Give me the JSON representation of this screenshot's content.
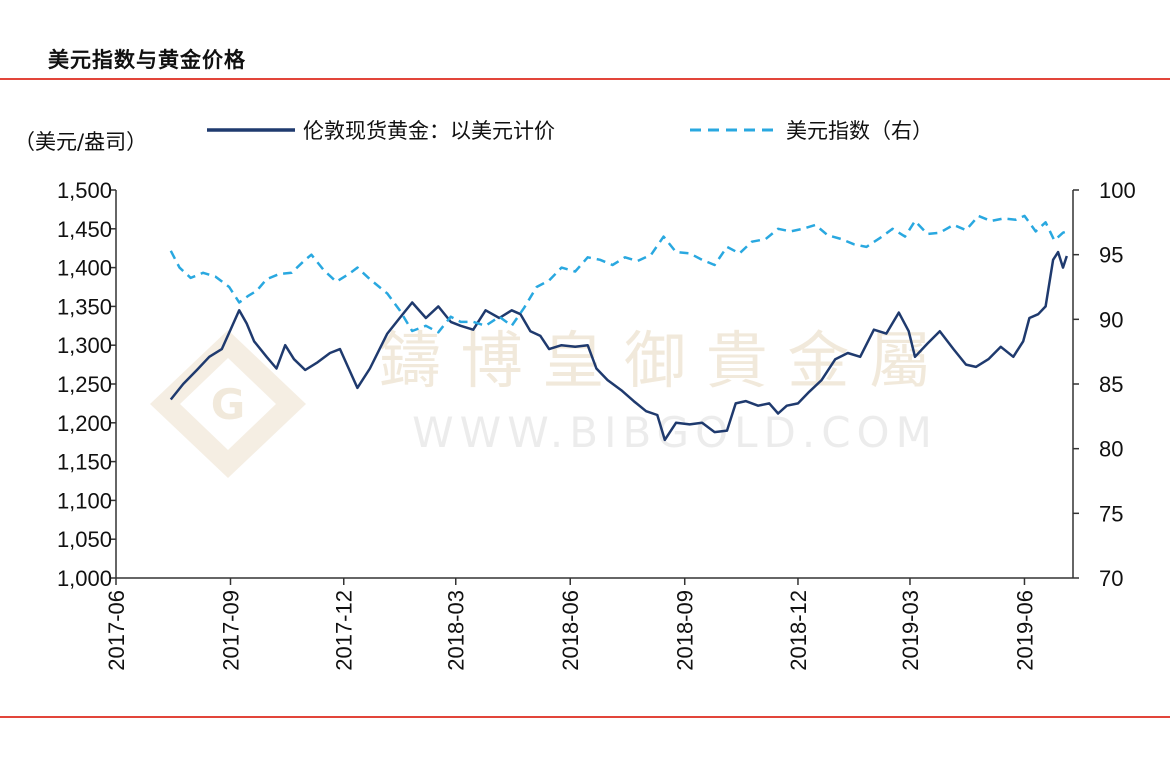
{
  "title": "美元指数与黄金价格",
  "colors": {
    "gold": "#1f3a6e",
    "dxy": "#29a8e0",
    "rule": "#e2453a"
  },
  "chart_data": {
    "type": "line",
    "ylabel_left_unit": "（美元/盎司）",
    "ylim_left": [
      1000,
      1500
    ],
    "yticks_left": [
      "1,000",
      "1,050",
      "1,100",
      "1,150",
      "1,200",
      "1,250",
      "1,300",
      "1,350",
      "1,400",
      "1,450",
      "1,500"
    ],
    "ylim_right": [
      70,
      100
    ],
    "yticks_right": [
      "70",
      "75",
      "80",
      "85",
      "90",
      "95",
      "100"
    ],
    "x_range": [
      "2017-06-01",
      "2019-07-10"
    ],
    "xticks": [
      "2017-06",
      "2017-09",
      "2017-12",
      "2018-03",
      "2018-06",
      "2018-09",
      "2018-12",
      "2019-03",
      "2019-06"
    ],
    "legend_position": "top",
    "series": [
      {
        "name": "伦敦现货黄金：以美元计价",
        "axis": "left",
        "style": "solid",
        "points": [
          [
            "2017-07-15",
            1230
          ],
          [
            "2017-07-25",
            1250
          ],
          [
            "2017-08-05",
            1268
          ],
          [
            "2017-08-15",
            1285
          ],
          [
            "2017-08-25",
            1295
          ],
          [
            "2017-09-01",
            1320
          ],
          [
            "2017-09-08",
            1345
          ],
          [
            "2017-09-14",
            1328
          ],
          [
            "2017-09-20",
            1305
          ],
          [
            "2017-09-30",
            1285
          ],
          [
            "2017-10-08",
            1270
          ],
          [
            "2017-10-15",
            1300
          ],
          [
            "2017-10-22",
            1282
          ],
          [
            "2017-10-31",
            1268
          ],
          [
            "2017-11-10",
            1278
          ],
          [
            "2017-11-20",
            1290
          ],
          [
            "2017-11-28",
            1295
          ],
          [
            "2017-12-05",
            1270
          ],
          [
            "2017-12-12",
            1245
          ],
          [
            "2017-12-22",
            1270
          ],
          [
            "2018-01-05",
            1315
          ],
          [
            "2018-01-15",
            1335
          ],
          [
            "2018-01-25",
            1355
          ],
          [
            "2018-02-05",
            1335
          ],
          [
            "2018-02-15",
            1350
          ],
          [
            "2018-02-25",
            1330
          ],
          [
            "2018-03-05",
            1325
          ],
          [
            "2018-03-15",
            1320
          ],
          [
            "2018-03-25",
            1345
          ],
          [
            "2018-04-05",
            1335
          ],
          [
            "2018-04-15",
            1345
          ],
          [
            "2018-04-22",
            1340
          ],
          [
            "2018-04-30",
            1318
          ],
          [
            "2018-05-08",
            1312
          ],
          [
            "2018-05-15",
            1295
          ],
          [
            "2018-05-25",
            1300
          ],
          [
            "2018-06-05",
            1298
          ],
          [
            "2018-06-15",
            1300
          ],
          [
            "2018-06-22",
            1270
          ],
          [
            "2018-07-01",
            1255
          ],
          [
            "2018-07-12",
            1242
          ],
          [
            "2018-07-22",
            1228
          ],
          [
            "2018-08-01",
            1215
          ],
          [
            "2018-08-10",
            1210
          ],
          [
            "2018-08-16",
            1178
          ],
          [
            "2018-08-25",
            1200
          ],
          [
            "2018-09-05",
            1198
          ],
          [
            "2018-09-15",
            1200
          ],
          [
            "2018-09-25",
            1188
          ],
          [
            "2018-10-05",
            1190
          ],
          [
            "2018-10-12",
            1225
          ],
          [
            "2018-10-20",
            1228
          ],
          [
            "2018-10-30",
            1222
          ],
          [
            "2018-11-08",
            1225
          ],
          [
            "2018-11-15",
            1212
          ],
          [
            "2018-11-22",
            1222
          ],
          [
            "2018-12-01",
            1225
          ],
          [
            "2018-12-10",
            1240
          ],
          [
            "2018-12-20",
            1255
          ],
          [
            "2018-12-31",
            1282
          ],
          [
            "2019-01-10",
            1290
          ],
          [
            "2019-01-20",
            1285
          ],
          [
            "2019-01-31",
            1320
          ],
          [
            "2019-02-10",
            1315
          ],
          [
            "2019-02-20",
            1342
          ],
          [
            "2019-02-28",
            1318
          ],
          [
            "2019-03-05",
            1285
          ],
          [
            "2019-03-15",
            1302
          ],
          [
            "2019-03-25",
            1318
          ],
          [
            "2019-04-05",
            1295
          ],
          [
            "2019-04-15",
            1275
          ],
          [
            "2019-04-23",
            1272
          ],
          [
            "2019-05-03",
            1282
          ],
          [
            "2019-05-13",
            1298
          ],
          [
            "2019-05-23",
            1285
          ],
          [
            "2019-05-31",
            1305
          ],
          [
            "2019-06-05",
            1335
          ],
          [
            "2019-06-12",
            1340
          ],
          [
            "2019-06-18",
            1350
          ],
          [
            "2019-06-24",
            1410
          ],
          [
            "2019-06-28",
            1420
          ],
          [
            "2019-07-02",
            1400
          ],
          [
            "2019-07-05",
            1415
          ]
        ]
      },
      {
        "name": "美元指数（右）",
        "axis": "right",
        "style": "dashed",
        "points": [
          [
            "2017-07-15",
            95.3
          ],
          [
            "2017-07-22",
            94.0
          ],
          [
            "2017-07-31",
            93.2
          ],
          [
            "2017-08-10",
            93.6
          ],
          [
            "2017-08-20",
            93.3
          ],
          [
            "2017-08-31",
            92.5
          ],
          [
            "2017-09-08",
            91.3
          ],
          [
            "2017-09-15",
            91.8
          ],
          [
            "2017-09-22",
            92.2
          ],
          [
            "2017-09-30",
            93.1
          ],
          [
            "2017-10-10",
            93.5
          ],
          [
            "2017-10-20",
            93.6
          ],
          [
            "2017-10-31",
            94.6
          ],
          [
            "2017-11-05",
            95.0
          ],
          [
            "2017-11-15",
            93.8
          ],
          [
            "2017-11-25",
            92.9
          ],
          [
            "2017-12-05",
            93.5
          ],
          [
            "2017-12-12",
            94.0
          ],
          [
            "2017-12-22",
            93.1
          ],
          [
            "2018-01-05",
            92.0
          ],
          [
            "2018-01-15",
            90.7
          ],
          [
            "2018-01-25",
            89.1
          ],
          [
            "2018-02-05",
            89.5
          ],
          [
            "2018-02-15",
            89.0
          ],
          [
            "2018-02-25",
            90.2
          ],
          [
            "2018-03-05",
            89.8
          ],
          [
            "2018-03-15",
            89.8
          ],
          [
            "2018-03-25",
            89.5
          ],
          [
            "2018-04-05",
            90.2
          ],
          [
            "2018-04-15",
            89.5
          ],
          [
            "2018-04-25",
            90.9
          ],
          [
            "2018-05-05",
            92.5
          ],
          [
            "2018-05-15",
            93.0
          ],
          [
            "2018-05-25",
            94.0
          ],
          [
            "2018-06-05",
            93.7
          ],
          [
            "2018-06-15",
            94.8
          ],
          [
            "2018-06-25",
            94.6
          ],
          [
            "2018-07-05",
            94.2
          ],
          [
            "2018-07-15",
            94.8
          ],
          [
            "2018-07-25",
            94.5
          ],
          [
            "2018-08-05",
            95.0
          ],
          [
            "2018-08-15",
            96.4
          ],
          [
            "2018-08-25",
            95.2
          ],
          [
            "2018-09-05",
            95.1
          ],
          [
            "2018-09-15",
            94.6
          ],
          [
            "2018-09-25",
            94.2
          ],
          [
            "2018-10-05",
            95.6
          ],
          [
            "2018-10-15",
            95.1
          ],
          [
            "2018-10-25",
            96.0
          ],
          [
            "2018-11-05",
            96.2
          ],
          [
            "2018-11-15",
            97.0
          ],
          [
            "2018-11-25",
            96.8
          ],
          [
            "2018-12-05",
            97.0
          ],
          [
            "2018-12-15",
            97.3
          ],
          [
            "2018-12-25",
            96.5
          ],
          [
            "2019-01-05",
            96.2
          ],
          [
            "2019-01-15",
            95.8
          ],
          [
            "2019-01-25",
            95.6
          ],
          [
            "2019-02-05",
            96.3
          ],
          [
            "2019-02-15",
            97.0
          ],
          [
            "2019-02-25",
            96.4
          ],
          [
            "2019-03-05",
            97.6
          ],
          [
            "2019-03-15",
            96.6
          ],
          [
            "2019-03-25",
            96.7
          ],
          [
            "2019-04-05",
            97.3
          ],
          [
            "2019-04-15",
            96.9
          ],
          [
            "2019-04-25",
            98.0
          ],
          [
            "2019-05-05",
            97.6
          ],
          [
            "2019-05-15",
            97.8
          ],
          [
            "2019-05-25",
            97.7
          ],
          [
            "2019-06-01",
            98.0
          ],
          [
            "2019-06-10",
            96.8
          ],
          [
            "2019-06-18",
            97.5
          ],
          [
            "2019-06-25",
            96.1
          ],
          [
            "2019-07-02",
            96.7
          ],
          [
            "2019-07-05",
            96.8
          ]
        ]
      }
    ]
  },
  "watermark": {
    "chinese": "鑄 博 皇 御 貴 金 屬",
    "latin": "WWW.BIBGOLD.COM",
    "logo_letter": "G"
  }
}
